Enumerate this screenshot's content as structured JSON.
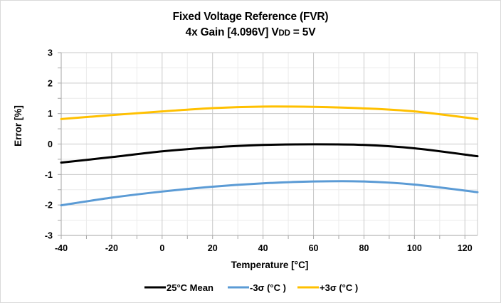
{
  "chart_data": {
    "type": "line",
    "title": "Fixed Voltage Reference (FVR)",
    "subtitle_prefix": "4x Gain [4.096V] V",
    "subtitle_sub": "DD",
    "subtitle_suffix": " = 5V",
    "xlabel": "Temperature [°C]",
    "ylabel": "Error [%]",
    "xlim": [
      -40,
      125
    ],
    "ylim": [
      -3,
      3
    ],
    "x_ticks": [
      -40,
      -20,
      0,
      20,
      40,
      60,
      80,
      100,
      120
    ],
    "x_tick_labels": [
      "-40",
      "-20",
      "0",
      "20",
      "40",
      "60",
      "80",
      "100",
      "120"
    ],
    "y_ticks": [
      3,
      2,
      1,
      0,
      -1,
      -2,
      -3
    ],
    "y_tick_labels": [
      "3",
      "2",
      "1",
      "0",
      "-1",
      "-2",
      "-3"
    ],
    "grid": true,
    "legend_position": "bottom",
    "x": [
      -40,
      -20,
      0,
      20,
      40,
      60,
      80,
      100,
      125
    ],
    "series": [
      {
        "name": "25°C Mean",
        "color": "#000000",
        "values": [
          -0.61,
          -0.43,
          -0.24,
          -0.11,
          -0.03,
          -0.01,
          -0.03,
          -0.14,
          -0.4
        ]
      },
      {
        "name": "-3σ (°C )",
        "color": "#5B9BD5",
        "values": [
          -2.01,
          -1.76,
          -1.56,
          -1.4,
          -1.29,
          -1.23,
          -1.23,
          -1.33,
          -1.58
        ]
      },
      {
        "name": "+3σ (°C )",
        "color": "#FFC000",
        "values": [
          0.82,
          0.95,
          1.07,
          1.18,
          1.23,
          1.22,
          1.17,
          1.07,
          0.82
        ]
      }
    ]
  }
}
